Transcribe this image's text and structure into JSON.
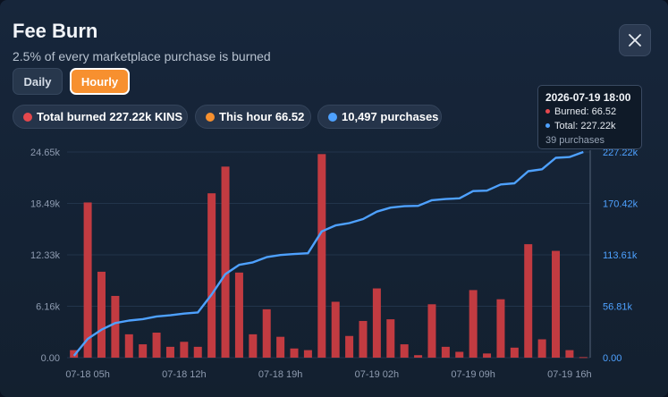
{
  "header": {
    "title": "Fee Burn",
    "subtitle": "2.5% of every marketplace purchase is burned"
  },
  "toggle": {
    "daily": "Daily",
    "hourly": "Hourly",
    "selected": "Hourly"
  },
  "stats": [
    {
      "label": "Total burned 227.22k KINS",
      "color": "#e5484d"
    },
    {
      "label": "This hour 66.52",
      "color": "#f7902f"
    },
    {
      "label": "10,497 purchases",
      "color": "#4ea1ff"
    }
  ],
  "close_icon": "close-icon",
  "tooltip": {
    "date": "2026-07-19 18:00",
    "burned": "Burned: 66.52",
    "total": "Total: 227.22k",
    "purchases": "39 purchases"
  },
  "colors": {
    "bar": "#c23b41",
    "line": "#4ea1ff",
    "accent": "#f7902f"
  },
  "chart_data": {
    "type": "bar",
    "title": "",
    "xlabel": "",
    "ylabel": "",
    "ylim": [
      0,
      24650
    ],
    "y2lim": [
      0,
      227220
    ],
    "y_ticks": [
      "0.00",
      "6.16k",
      "12.33k",
      "18.49k",
      "24.65k"
    ],
    "y2_ticks": [
      "0.00",
      "56.81k",
      "113.61k",
      "170.42k",
      "227.22k"
    ],
    "x_tick_labels": [
      "07-18 05h",
      "07-18 12h",
      "07-18 19h",
      "07-19 02h",
      "07-19 09h",
      "07-19 16h"
    ],
    "x_tick_index": [
      1,
      8,
      15,
      22,
      29,
      36
    ],
    "grid": true,
    "legend": "none",
    "series": [
      {
        "name": "Burned",
        "type": "bar",
        "axis": "left",
        "values": [
          900,
          18600,
          10300,
          7400,
          2800,
          1600,
          3000,
          1300,
          1900,
          1300,
          19700,
          22900,
          10200,
          2800,
          5800,
          2500,
          1100,
          900,
          24400,
          6700,
          2600,
          4400,
          8300,
          4600,
          1600,
          300,
          6400,
          1300,
          700,
          8100,
          500,
          7000,
          1200,
          13600,
          2200,
          12800,
          900,
          67
        ]
      },
      {
        "name": "Total",
        "type": "line",
        "axis": "right",
        "values": [
          2100,
          20700,
          30900,
          38200,
          41000,
          42600,
          45500,
          46800,
          48700,
          50000,
          69600,
          92300,
          102500,
          105300,
          111000,
          113400,
          114500,
          115400,
          139500,
          146100,
          148700,
          153100,
          161300,
          165800,
          167400,
          167700,
          174000,
          175300,
          176000,
          184000,
          184500,
          191400,
          192600,
          206000,
          208200,
          220800,
          221700,
          227220
        ]
      }
    ]
  }
}
